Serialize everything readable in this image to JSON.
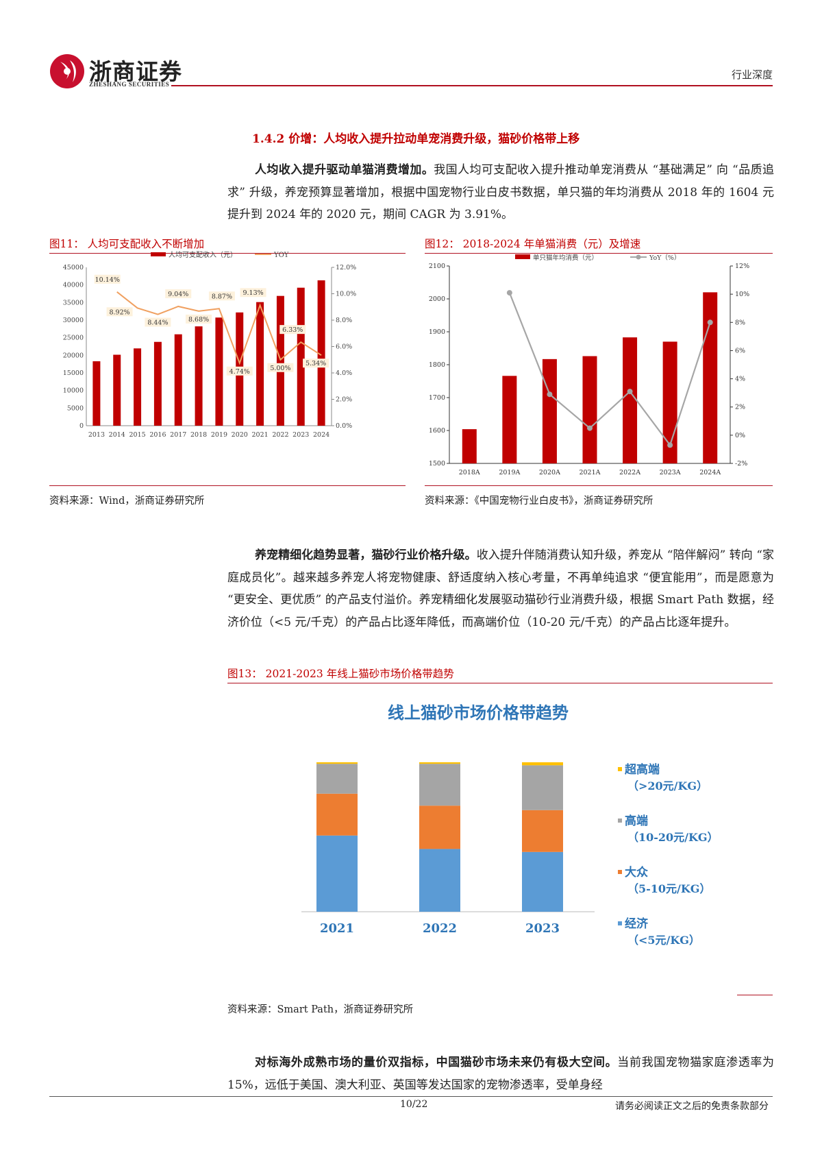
{
  "header": {
    "logo_cn": "浙商证券",
    "logo_en": "ZHESHANG SECURITIES",
    "doc_type": "行业深度"
  },
  "section": {
    "title": "1.4.2 价增：人均收入提升拉动单宠消费升级，猫砂价格带上移"
  },
  "paragraphs": {
    "p1_bold": "人均收入提升驱动单猫消费增加。",
    "p1_rest": "我国人均可支配收入提升推动单宠消费从 “基础满足” 向 “品质追求” 升级，养宠预算显著增加，根据中国宠物行业白皮书数据，单只猫的年均消费从 2018 年的 1604 元提升到 2024 年的 2020 元，期间 CAGR 为 3.91%。",
    "p2_bold": "养宠精细化趋势显著，猫砂行业价格升级。",
    "p2_rest": "收入提升伴随消费认知升级，养宠从 “陪伴解闷” 转向 “家庭成员化”。越来越多养宠人将宠物健康、舒适度纳入核心考量，不再单纯追求 “便宜能用”，而是愿意为 “更安全、更优质” 的产品支付溢价。养宠精细化发展驱动猫砂行业消费升级，根据 Smart Path 数据，经济价位（<5 元/千克）的产品占比逐年降低，而高端价位（10-20 元/千克）的产品占比逐年提升。",
    "p3_bold": "对标海外成熟市场的量价双指标，中国猫砂市场未来仍有极大空间。",
    "p3_rest": "当前我国宠物猫家庭渗透率为 15%，远低于美国、澳大利亚、英国等发达国家的宠物渗透率，受单身经"
  },
  "fig11": {
    "caption": "图11：  人均可支配收入不断增加",
    "source": "资料来源：Wind，浙商证券研究所"
  },
  "fig12": {
    "caption": "图12：  2018-2024 年单猫消费（元）及增速",
    "source": "资料来源：《中国宠物行业白皮书》，浙商证券研究所"
  },
  "fig13": {
    "caption": "图13：  2021-2023 年线上猫砂市场价格带趋势",
    "source": "资料来源：Smart Path，浙商证券研究所"
  },
  "footer": {
    "page": "10/22",
    "disclaimer": "请务必阅读正文之后的免责条款部分"
  },
  "chart_data": [
    {
      "type": "bar",
      "categories": [
        "2013",
        "2014",
        "2015",
        "2016",
        "2017",
        "2018",
        "2019",
        "2020",
        "2021",
        "2022",
        "2023",
        "2024"
      ],
      "series": [
        {
          "name": "人均可支配收入（元）",
          "type": "bar",
          "axis": "left",
          "color": "#c00000",
          "values": [
            18311,
            20167,
            21966,
            23821,
            25974,
            28228,
            30733,
            32189,
            35128,
            36883,
            39218,
            41314
          ]
        },
        {
          "name": "YOY",
          "type": "line",
          "axis": "right",
          "color": "#f0a060",
          "values": [
            null,
            10.14,
            8.92,
            8.44,
            9.04,
            8.68,
            8.87,
            4.74,
            9.13,
            5.0,
            6.33,
            5.34
          ]
        }
      ],
      "data_labels": [
        {
          "x": "2014",
          "text": "10.14%"
        },
        {
          "x": "2015",
          "text": "8.92%"
        },
        {
          "x": "2016",
          "text": "8.44%"
        },
        {
          "x": "2017",
          "text": "9.04%"
        },
        {
          "x": "2018",
          "text": "8.68%"
        },
        {
          "x": "2019",
          "text": "8.87%"
        },
        {
          "x": "2020",
          "text": "4.74%"
        },
        {
          "x": "2021",
          "text": "9.13%"
        },
        {
          "x": "2022",
          "text": "5.00%"
        },
        {
          "x": "2023",
          "text": "6.33%"
        },
        {
          "x": "2024",
          "text": "5.34%"
        }
      ],
      "ylim_left": [
        0,
        45000
      ],
      "yticks_left": [
        "0",
        "5000",
        "10000",
        "15000",
        "20000",
        "25000",
        "30000",
        "35000",
        "40000",
        "45000"
      ],
      "ylim_right": [
        0,
        12
      ],
      "yticks_right": [
        "0.0%",
        "2.0%",
        "4.0%",
        "6.0%",
        "8.0%",
        "10.0%",
        "12.0%"
      ],
      "legend": "top-center",
      "grid": false
    },
    {
      "type": "bar",
      "categories": [
        "2018A",
        "2019A",
        "2020A",
        "2021A",
        "2022A",
        "2023A",
        "2024A"
      ],
      "series": [
        {
          "name": "单只猫年均消费（元）",
          "type": "bar",
          "axis": "left",
          "color": "#c00000",
          "values": [
            1604,
            1766,
            1817,
            1826,
            1883,
            1870,
            2020
          ]
        },
        {
          "name": "YoY（%）",
          "type": "line",
          "axis": "right",
          "color": "#a6a6a6",
          "values": [
            null,
            10.1,
            2.9,
            0.5,
            3.1,
            -0.7,
            8.0
          ]
        }
      ],
      "ylim_left": [
        1500,
        2100
      ],
      "yticks_left": [
        "1500",
        "1600",
        "1700",
        "1800",
        "1900",
        "2000",
        "2100"
      ],
      "ylim_right": [
        -2,
        12
      ],
      "yticks_right": [
        "-2%",
        "0%",
        "2%",
        "4%",
        "6%",
        "8%",
        "10%",
        "12%"
      ],
      "legend": "top-center",
      "grid": false
    },
    {
      "type": "bar",
      "stacked": true,
      "title": "线上猫砂市场价格带趋势",
      "categories": [
        "2021",
        "2022",
        "2023"
      ],
      "series": [
        {
          "name": "经济",
          "sub": "（<5元/KG）",
          "color": "#5b9bd5",
          "values": [
            51,
            42,
            40
          ]
        },
        {
          "name": "大众",
          "sub": "（5-10元/KG）",
          "color": "#ed7d31",
          "values": [
            28,
            29,
            28
          ]
        },
        {
          "name": "高端",
          "sub": "（10-20元/KG）",
          "color": "#a5a5a5",
          "values": [
            20,
            28,
            30
          ]
        },
        {
          "name": "超高端",
          "sub": "（>20元/KG）",
          "color": "#ffc000",
          "values": [
            1,
            1,
            2
          ]
        }
      ],
      "ylim": [
        0,
        100
      ],
      "legend": "right",
      "grid": false
    }
  ]
}
